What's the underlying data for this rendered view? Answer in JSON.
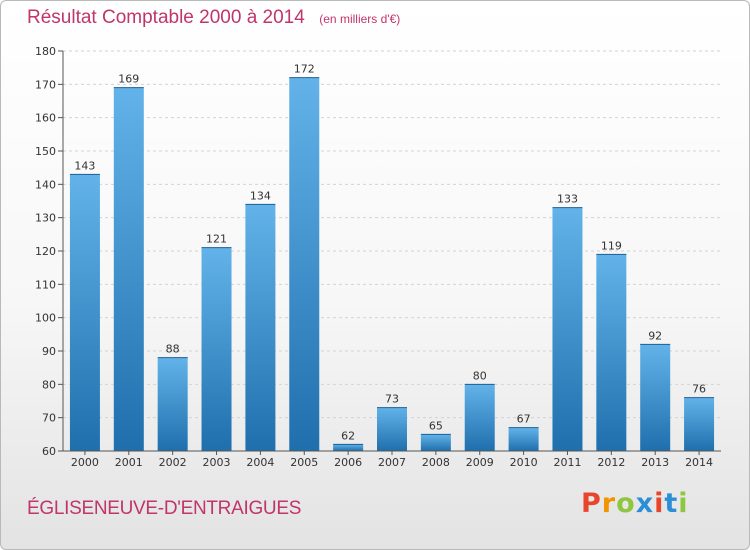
{
  "header": {
    "title": "Résultat Comptable 2000 à 2014",
    "subtitle": "(en milliers d'€)"
  },
  "footer": {
    "commune": "ÉGLISENEUVE-D'ENTRAIGUES",
    "logo_text": "Proxiti",
    "logo_colors": [
      "#e8462a",
      "#f29400",
      "#8dc63f",
      "#2a8fd6",
      "#e8462a",
      "#2a8fd6",
      "#8dc63f"
    ]
  },
  "colors": {
    "title": "#c0356a",
    "bar_top": "#63b3ea",
    "bar_bottom": "#1f6fad",
    "grid": "#d3d3d3",
    "axis": "#555555"
  },
  "chart_data": {
    "type": "bar",
    "title": "Résultat Comptable 2000 à 2014",
    "subtitle": "(en milliers d'€)",
    "categories": [
      "2000",
      "2001",
      "2002",
      "2003",
      "2004",
      "2005",
      "2006",
      "2007",
      "2008",
      "2009",
      "2010",
      "2011",
      "2012",
      "2013",
      "2014"
    ],
    "values": [
      143,
      169,
      88,
      121,
      134,
      172,
      62,
      73,
      65,
      80,
      67,
      133,
      119,
      92,
      76
    ],
    "ylim": [
      60,
      180
    ],
    "yticks": [
      60,
      70,
      80,
      90,
      100,
      110,
      120,
      130,
      140,
      150,
      160,
      170,
      180
    ],
    "grid": true,
    "data_labels": true
  }
}
